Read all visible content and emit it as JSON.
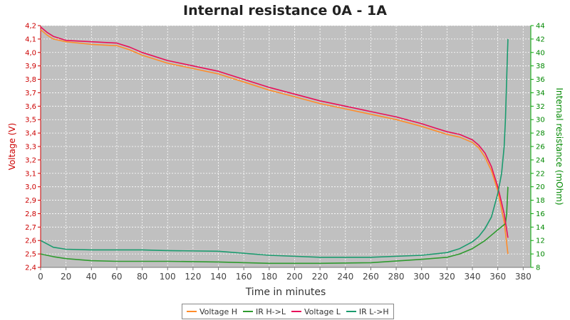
{
  "chart_data": {
    "type": "line",
    "title": "Internal resistance  0A - 1A",
    "xlabel": "Time in minutes",
    "ylabel_left": "Voltage (V)",
    "ylabel_right": "Internal resistance (mOhm)",
    "xlim": [
      0,
      386
    ],
    "ylim_left": [
      2.4,
      4.2
    ],
    "ylim_right": [
      8,
      44
    ],
    "x_ticks": [
      0,
      20,
      40,
      60,
      80,
      100,
      120,
      140,
      160,
      180,
      200,
      220,
      240,
      260,
      280,
      300,
      320,
      340,
      360,
      380
    ],
    "y_ticks_left": [
      "2,4",
      "2,5",
      "2,6",
      "2,7",
      "2,8",
      "2,9",
      "3,0",
      "3,1",
      "3,2",
      "3,3",
      "3,4",
      "3,5",
      "3,6",
      "3,7",
      "3,8",
      "3,9",
      "4,0",
      "4,1",
      "4,2"
    ],
    "y_ticks_right": [
      "8",
      "10",
      "12",
      "14",
      "16",
      "18",
      "20",
      "22",
      "24",
      "26",
      "28",
      "30",
      "32",
      "34",
      "36",
      "38",
      "40",
      "42",
      "44"
    ],
    "grid": true,
    "legend_position": "bottom",
    "series": [
      {
        "name": "Voltage H",
        "axis": "left",
        "color": "#ff8c2a",
        "x": [
          0,
          5,
          10,
          20,
          40,
          60,
          70,
          80,
          100,
          120,
          140,
          160,
          180,
          200,
          220,
          240,
          260,
          280,
          300,
          310,
          320,
          330,
          340,
          345,
          350,
          355,
          360,
          365,
          368
        ],
        "y": [
          4.17,
          4.13,
          4.1,
          4.08,
          4.06,
          4.05,
          4.02,
          3.98,
          3.92,
          3.88,
          3.84,
          3.78,
          3.72,
          3.67,
          3.62,
          3.58,
          3.54,
          3.5,
          3.45,
          3.42,
          3.39,
          3.37,
          3.33,
          3.29,
          3.22,
          3.12,
          2.97,
          2.74,
          2.5
        ]
      },
      {
        "name": "IR H->L",
        "axis": "right",
        "color": "#2e9a2e",
        "x": [
          0,
          10,
          20,
          40,
          60,
          80,
          100,
          140,
          180,
          220,
          260,
          300,
          320,
          330,
          340,
          345,
          350,
          355,
          360,
          364,
          366,
          367,
          368
        ],
        "y": [
          10.0,
          9.6,
          9.3,
          9.0,
          8.9,
          8.9,
          8.9,
          8.8,
          8.6,
          8.6,
          8.7,
          9.2,
          9.5,
          10.0,
          10.8,
          11.4,
          12.0,
          12.8,
          13.6,
          14.2,
          14.5,
          16.0,
          20.0
        ]
      },
      {
        "name": "Voltage L",
        "axis": "left",
        "color": "#e8105a",
        "x": [
          0,
          5,
          10,
          20,
          40,
          60,
          70,
          80,
          100,
          120,
          140,
          160,
          180,
          200,
          220,
          240,
          260,
          280,
          300,
          310,
          320,
          330,
          340,
          345,
          350,
          355,
          360,
          365,
          368
        ],
        "y": [
          4.19,
          4.15,
          4.12,
          4.09,
          4.08,
          4.07,
          4.04,
          4.0,
          3.94,
          3.9,
          3.86,
          3.8,
          3.74,
          3.69,
          3.64,
          3.6,
          3.56,
          3.52,
          3.47,
          3.44,
          3.41,
          3.39,
          3.35,
          3.31,
          3.25,
          3.15,
          3.0,
          2.8,
          2.62
        ]
      },
      {
        "name": "IR L->H",
        "axis": "right",
        "color": "#1a9b6e",
        "x": [
          0,
          5,
          10,
          20,
          40,
          60,
          80,
          100,
          140,
          180,
          220,
          260,
          300,
          320,
          330,
          340,
          345,
          350,
          355,
          360,
          363,
          365,
          366,
          367,
          368
        ],
        "y": [
          12.0,
          11.5,
          11.0,
          10.7,
          10.6,
          10.6,
          10.6,
          10.5,
          10.4,
          9.8,
          9.5,
          9.5,
          9.8,
          10.2,
          10.8,
          11.8,
          12.6,
          13.8,
          15.5,
          19.0,
          22.0,
          26.0,
          30.0,
          36.0,
          42.0
        ]
      }
    ]
  }
}
